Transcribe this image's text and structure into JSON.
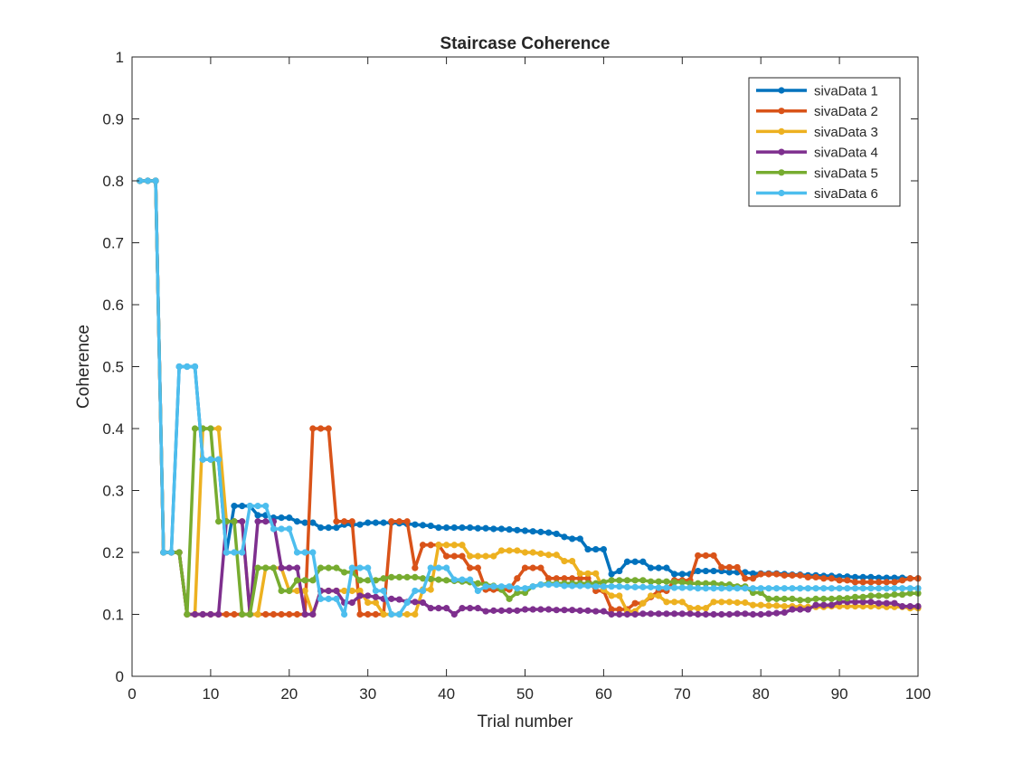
{
  "chart_data": {
    "type": "line",
    "title": "Staircase Coherence",
    "xlabel": "Trial number",
    "ylabel": "Coherence",
    "xlim": [
      0,
      100
    ],
    "ylim": [
      0,
      1
    ],
    "xticks": [
      0,
      10,
      20,
      30,
      40,
      50,
      60,
      70,
      80,
      90,
      100
    ],
    "yticks": [
      0,
      0.1,
      0.2,
      0.3,
      0.4,
      0.5,
      0.6,
      0.7,
      0.8,
      0.9,
      1
    ],
    "xtick_labels": [
      "0",
      "10",
      "20",
      "30",
      "40",
      "50",
      "60",
      "70",
      "80",
      "90",
      "100"
    ],
    "ytick_labels": [
      "0",
      "0.1",
      "0.2",
      "0.3",
      "0.4",
      "0.5",
      "0.6",
      "0.7",
      "0.8",
      "0.9",
      "1"
    ],
    "grid": false,
    "box": true,
    "legend_position": "top-right",
    "marker": "filled-circle",
    "x": [
      1,
      2,
      3,
      4,
      5,
      6,
      7,
      8,
      9,
      10,
      11,
      12,
      13,
      14,
      15,
      16,
      17,
      18,
      19,
      20,
      21,
      22,
      23,
      24,
      25,
      26,
      27,
      28,
      29,
      30,
      31,
      32,
      33,
      34,
      35,
      36,
      37,
      38,
      39,
      40,
      41,
      42,
      43,
      44,
      45,
      46,
      47,
      48,
      49,
      50,
      51,
      52,
      53,
      54,
      55,
      56,
      57,
      58,
      59,
      60,
      61,
      62,
      63,
      64,
      65,
      66,
      67,
      68,
      69,
      70,
      71,
      72,
      73,
      74,
      75,
      76,
      77,
      78,
      79,
      80,
      81,
      82,
      83,
      84,
      85,
      86,
      87,
      88,
      89,
      90,
      91,
      92,
      93,
      94,
      95,
      96,
      97,
      98,
      99,
      100
    ],
    "series": [
      {
        "name": "sivaData 1",
        "color": "#0072BD",
        "values": [
          0.8,
          0.8,
          0.8,
          0.2,
          0.2,
          0.5,
          0.5,
          0.5,
          0.35,
          0.35,
          0.35,
          0.2,
          0.275,
          0.275,
          0.275,
          0.26,
          0.26,
          0.256,
          0.256,
          0.256,
          0.25,
          0.248,
          0.248,
          0.24,
          0.24,
          0.24,
          0.245,
          0.245,
          0.245,
          0.248,
          0.248,
          0.248,
          0.248,
          0.247,
          0.246,
          0.245,
          0.244,
          0.243,
          0.24,
          0.24,
          0.24,
          0.24,
          0.24,
          0.239,
          0.239,
          0.238,
          0.238,
          0.237,
          0.236,
          0.235,
          0.234,
          0.233,
          0.232,
          0.23,
          0.225,
          0.222,
          0.222,
          0.205,
          0.205,
          0.205,
          0.165,
          0.17,
          0.185,
          0.185,
          0.185,
          0.175,
          0.175,
          0.175,
          0.165,
          0.165,
          0.165,
          0.17,
          0.17,
          0.17,
          0.17,
          0.168,
          0.168,
          0.168,
          0.166,
          0.166,
          0.166,
          0.166,
          0.165,
          0.164,
          0.164,
          0.163,
          0.163,
          0.162,
          0.162,
          0.161,
          0.161,
          0.16,
          0.16,
          0.16,
          0.159,
          0.159,
          0.159,
          0.159,
          0.158,
          0.158
        ]
      },
      {
        "name": "sivaData 2",
        "color": "#D95319",
        "values": [
          0.8,
          0.8,
          0.8,
          0.2,
          0.2,
          0.2,
          0.1,
          0.1,
          0.1,
          0.1,
          0.1,
          0.1,
          0.1,
          0.1,
          0.1,
          0.1,
          0.1,
          0.1,
          0.1,
          0.1,
          0.1,
          0.1,
          0.4,
          0.4,
          0.4,
          0.25,
          0.25,
          0.25,
          0.1,
          0.1,
          0.1,
          0.1,
          0.25,
          0.25,
          0.25,
          0.175,
          0.212,
          0.212,
          0.212,
          0.194,
          0.194,
          0.194,
          0.175,
          0.175,
          0.14,
          0.14,
          0.14,
          0.14,
          0.158,
          0.175,
          0.175,
          0.175,
          0.158,
          0.158,
          0.158,
          0.158,
          0.158,
          0.158,
          0.138,
          0.138,
          0.108,
          0.108,
          0.108,
          0.118,
          0.118,
          0.128,
          0.138,
          0.138,
          0.155,
          0.155,
          0.155,
          0.195,
          0.195,
          0.195,
          0.176,
          0.176,
          0.176,
          0.158,
          0.158,
          0.165,
          0.165,
          0.165,
          0.163,
          0.163,
          0.163,
          0.16,
          0.16,
          0.158,
          0.158,
          0.155,
          0.155,
          0.152,
          0.152,
          0.152,
          0.152,
          0.152,
          0.152,
          0.155,
          0.158,
          0.158
        ]
      },
      {
        "name": "sivaData 3",
        "color": "#EDB120",
        "values": [
          0.8,
          0.8,
          0.8,
          0.2,
          0.2,
          0.2,
          0.1,
          0.1,
          0.4,
          0.4,
          0.4,
          0.25,
          0.25,
          0.25,
          0.1,
          0.1,
          0.175,
          0.175,
          0.175,
          0.138,
          0.138,
          0.138,
          0.1,
          0.138,
          0.138,
          0.138,
          0.138,
          0.138,
          0.138,
          0.119,
          0.119,
          0.1,
          0.1,
          0.1,
          0.1,
          0.1,
          0.14,
          0.14,
          0.212,
          0.212,
          0.212,
          0.212,
          0.194,
          0.194,
          0.194,
          0.194,
          0.203,
          0.203,
          0.203,
          0.2,
          0.2,
          0.198,
          0.196,
          0.196,
          0.186,
          0.186,
          0.166,
          0.166,
          0.166,
          0.14,
          0.13,
          0.13,
          0.105,
          0.105,
          0.118,
          0.13,
          0.13,
          0.12,
          0.12,
          0.12,
          0.11,
          0.11,
          0.11,
          0.12,
          0.12,
          0.12,
          0.119,
          0.119,
          0.115,
          0.115,
          0.114,
          0.114,
          0.113,
          0.113,
          0.112,
          0.112,
          0.112,
          0.112,
          0.113,
          0.113,
          0.113,
          0.113,
          0.113,
          0.113,
          0.113,
          0.112,
          0.112,
          0.112,
          0.11,
          0.11
        ]
      },
      {
        "name": "sivaData 4",
        "color": "#7E2F8E",
        "values": [
          0.8,
          0.8,
          0.8,
          0.2,
          0.2,
          0.2,
          0.1,
          0.1,
          0.1,
          0.1,
          0.1,
          0.25,
          0.25,
          0.25,
          0.1,
          0.25,
          0.25,
          0.25,
          0.175,
          0.175,
          0.175,
          0.1,
          0.1,
          0.138,
          0.138,
          0.138,
          0.119,
          0.119,
          0.13,
          0.13,
          0.128,
          0.125,
          0.125,
          0.124,
          0.12,
          0.12,
          0.119,
          0.11,
          0.11,
          0.11,
          0.1,
          0.11,
          0.11,
          0.11,
          0.105,
          0.106,
          0.106,
          0.106,
          0.106,
          0.108,
          0.108,
          0.108,
          0.108,
          0.107,
          0.107,
          0.107,
          0.106,
          0.106,
          0.105,
          0.105,
          0.1,
          0.1,
          0.1,
          0.1,
          0.101,
          0.101,
          0.101,
          0.101,
          0.101,
          0.101,
          0.101,
          0.1,
          0.1,
          0.1,
          0.1,
          0.1,
          0.101,
          0.101,
          0.1,
          0.1,
          0.101,
          0.102,
          0.103,
          0.108,
          0.108,
          0.108,
          0.115,
          0.115,
          0.115,
          0.12,
          0.12,
          0.12,
          0.12,
          0.12,
          0.118,
          0.118,
          0.118,
          0.113,
          0.113,
          0.113
        ]
      },
      {
        "name": "sivaData 5",
        "color": "#77AC30",
        "values": [
          0.8,
          0.8,
          0.8,
          0.2,
          0.2,
          0.2,
          0.1,
          0.4,
          0.4,
          0.4,
          0.25,
          0.25,
          0.25,
          0.1,
          0.1,
          0.175,
          0.175,
          0.175,
          0.138,
          0.138,
          0.155,
          0.155,
          0.155,
          0.175,
          0.175,
          0.175,
          0.168,
          0.168,
          0.155,
          0.155,
          0.155,
          0.158,
          0.16,
          0.16,
          0.16,
          0.16,
          0.158,
          0.157,
          0.156,
          0.155,
          0.154,
          0.153,
          0.152,
          0.15,
          0.148,
          0.146,
          0.14,
          0.125,
          0.135,
          0.135,
          0.145,
          0.148,
          0.15,
          0.15,
          0.15,
          0.15,
          0.15,
          0.15,
          0.15,
          0.152,
          0.155,
          0.155,
          0.155,
          0.155,
          0.155,
          0.153,
          0.153,
          0.153,
          0.152,
          0.152,
          0.15,
          0.15,
          0.15,
          0.15,
          0.148,
          0.148,
          0.145,
          0.145,
          0.135,
          0.135,
          0.125,
          0.125,
          0.125,
          0.125,
          0.123,
          0.123,
          0.125,
          0.125,
          0.125,
          0.126,
          0.126,
          0.128,
          0.128,
          0.13,
          0.13,
          0.13,
          0.132,
          0.132,
          0.134,
          0.134
        ]
      },
      {
        "name": "sivaData 6",
        "color": "#4DBEEE",
        "values": [
          0.8,
          0.8,
          0.8,
          0.2,
          0.2,
          0.5,
          0.5,
          0.5,
          0.35,
          0.35,
          0.35,
          0.2,
          0.2,
          0.2,
          0.275,
          0.275,
          0.275,
          0.238,
          0.238,
          0.238,
          0.2,
          0.2,
          0.2,
          0.125,
          0.125,
          0.125,
          0.1,
          0.175,
          0.175,
          0.175,
          0.138,
          0.138,
          0.1,
          0.1,
          0.119,
          0.138,
          0.138,
          0.175,
          0.175,
          0.175,
          0.156,
          0.156,
          0.156,
          0.138,
          0.145,
          0.145,
          0.145,
          0.145,
          0.142,
          0.142,
          0.145,
          0.148,
          0.148,
          0.148,
          0.146,
          0.146,
          0.146,
          0.146,
          0.145,
          0.145,
          0.145,
          0.145,
          0.144,
          0.144,
          0.144,
          0.144,
          0.143,
          0.143,
          0.143,
          0.143,
          0.143,
          0.142,
          0.142,
          0.142,
          0.142,
          0.142,
          0.142,
          0.142,
          0.142,
          0.142,
          0.142,
          0.142,
          0.142,
          0.142,
          0.142,
          0.142,
          0.142,
          0.142,
          0.142,
          0.142,
          0.142,
          0.142,
          0.142,
          0.142,
          0.142,
          0.142,
          0.142,
          0.142,
          0.142,
          0.142
        ]
      }
    ]
  }
}
